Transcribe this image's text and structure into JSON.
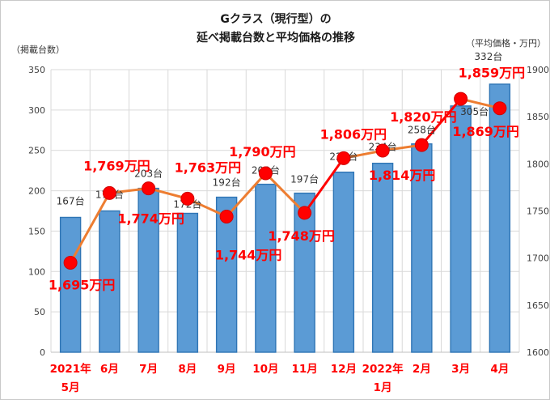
{
  "title": {
    "line1": "Gクラス（現行型）の",
    "line2": "延べ掲載台数と平均価格の推移"
  },
  "chart_data": {
    "type": "bar+line combo",
    "categories": [
      [
        "2021年",
        "5月"
      ],
      [
        "6月"
      ],
      [
        "7月"
      ],
      [
        "8月"
      ],
      [
        "9月"
      ],
      [
        "10月"
      ],
      [
        "11月"
      ],
      [
        "12月"
      ],
      [
        "2022年",
        "1月"
      ],
      [
        "2月"
      ],
      [
        "3月"
      ],
      [
        "4月"
      ]
    ],
    "series": [
      {
        "name": "延べ掲載台数",
        "type": "bar",
        "axis": "left",
        "values": [
          167,
          175,
          203,
          172,
          192,
          208,
          197,
          223,
          234,
          258,
          305,
          332
        ],
        "labels": [
          "167台",
          "175台",
          "203台",
          "172台",
          "192台",
          "208台",
          "197台",
          "223台",
          "234台",
          "258台",
          "305台",
          "332台"
        ],
        "bar_color": "#5b9bd5",
        "bar_border": "#2f75b5",
        "label_color": "#333333"
      },
      {
        "name": "平均価格",
        "type": "line",
        "axis": "right",
        "values": [
          1695,
          1769,
          1774,
          1763,
          1744,
          1790,
          1748,
          1806,
          1814,
          1820,
          1869,
          1859
        ],
        "labels": [
          "1,695万円",
          "1,769万円",
          "1,774万円",
          "1,763万円",
          "1,744万円",
          "1,790万円",
          "1,748万円",
          "1,806万円",
          "1,814万円",
          "1,820万円",
          "1,869万円",
          "1,859万円"
        ],
        "line_color": "#ed7d31",
        "red_color": "#ff0000",
        "red_segment_starts": [
          6,
          9
        ],
        "marker_color": "#ff0000",
        "marker_border": "#d00000",
        "label_color": "#ff0000"
      }
    ],
    "left_axis": {
      "title": "（掲載台数）",
      "min": 0,
      "max": 350,
      "ticks": [
        350,
        300,
        250,
        200,
        150,
        100,
        50,
        0
      ]
    },
    "right_axis": {
      "title": "（平均価格・万円）",
      "min": 1600,
      "max": 1900,
      "ticks": [
        1900,
        1850,
        1800,
        1750,
        1700,
        1650,
        1600
      ]
    },
    "x_label_color": "#ff0000",
    "grid": true,
    "legend": "none"
  }
}
